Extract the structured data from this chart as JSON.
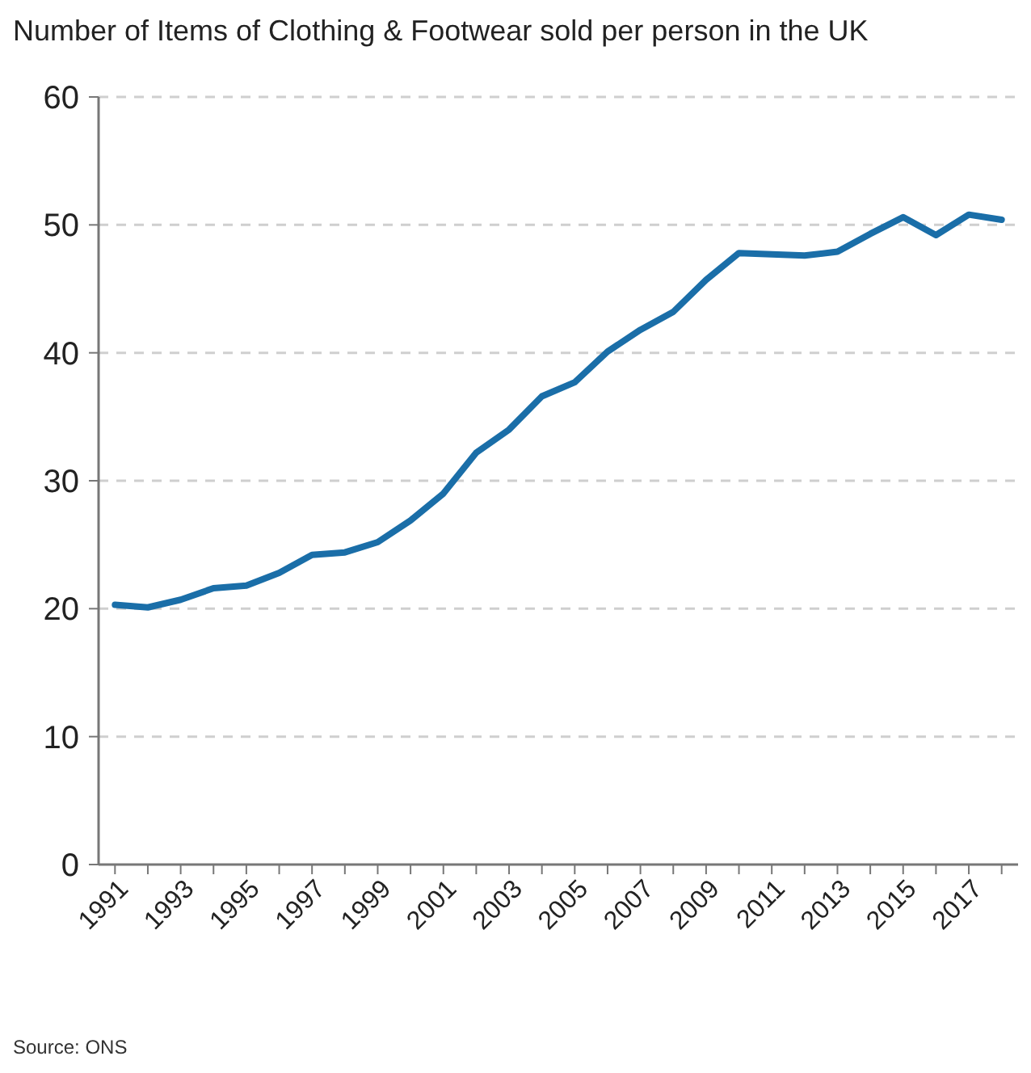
{
  "chart_data": {
    "type": "line",
    "title": "Number of Items of Clothing & Footwear sold per person in the UK",
    "categories": [
      "1991",
      null,
      "1993",
      null,
      "1995",
      null,
      "1997",
      null,
      "1999",
      null,
      "2001",
      null,
      "2003",
      null,
      "2005",
      null,
      "2007",
      null,
      "2009",
      null,
      "2011",
      null,
      "2013",
      null,
      "2015",
      null,
      "2017",
      null
    ],
    "series": [
      {
        "color": "#1a6ea8",
        "values": [
          20.3,
          20.1,
          20.7,
          21.6,
          21.8,
          22.8,
          24.2,
          24.4,
          25.2,
          26.9,
          29.0,
          32.2,
          34.0,
          36.6,
          37.7,
          40.1,
          41.8,
          43.2,
          45.7,
          47.8,
          47.7,
          47.6,
          47.9,
          49.3,
          50.6,
          49.2,
          50.8,
          50.4
        ]
      }
    ],
    "ylim": [
      0,
      60
    ],
    "yticks": [
      0,
      10,
      20,
      30,
      40,
      50,
      60
    ],
    "grid": "y",
    "marker": "none",
    "line_style": "solid",
    "annotations": [
      "Source: ONS"
    ]
  }
}
